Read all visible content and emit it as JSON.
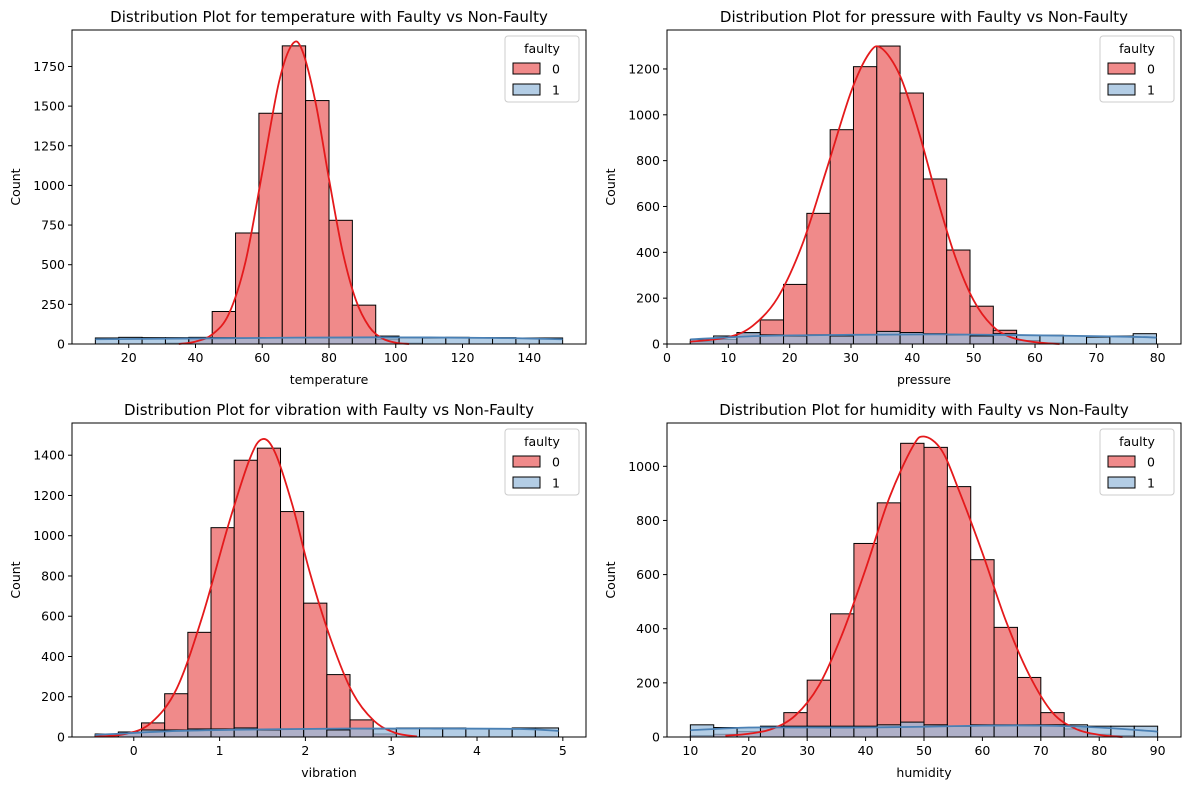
{
  "chart_data": [
    {
      "type": "bar",
      "title": "Distribution Plot for temperature with Faulty vs Non-Faulty",
      "xlabel": "temperature",
      "ylabel": "Count",
      "xlim": [
        3,
        157
      ],
      "ylim": [
        0,
        1980
      ],
      "xticks": [
        20,
        40,
        60,
        80,
        100,
        120,
        140
      ],
      "yticks": [
        0,
        250,
        500,
        750,
        1000,
        1250,
        1500,
        1750
      ],
      "bin_edges": [
        10,
        17,
        24,
        31,
        38,
        45,
        52,
        59,
        66,
        73,
        80,
        87,
        94,
        101,
        108,
        115,
        122,
        129,
        136,
        143,
        150
      ],
      "legend": {
        "title": "faulty",
        "placement": "top-right",
        "entries": [
          "0",
          "1"
        ]
      },
      "colors": {
        "0": "#f08a8a",
        "0_line": "#e41a1c",
        "1": "#99bcdc",
        "1_line": "#4a80b4"
      },
      "series": [
        {
          "name": "0",
          "values": [
            0,
            0,
            0,
            5,
            40,
            205,
            700,
            1455,
            1880,
            1535,
            780,
            245,
            30,
            5,
            0,
            0,
            0,
            0,
            0,
            0
          ],
          "kde": [
            [
              35,
              0
            ],
            [
              40,
              15
            ],
            [
              45,
              60
            ],
            [
              50,
              190
            ],
            [
              55,
              520
            ],
            [
              60,
              1080
            ],
            [
              65,
              1650
            ],
            [
              69,
              1890
            ],
            [
              72,
              1850
            ],
            [
              76,
              1520
            ],
            [
              80,
              1040
            ],
            [
              84,
              590
            ],
            [
              88,
              280
            ],
            [
              92,
              110
            ],
            [
              96,
              35
            ],
            [
              100,
              8
            ],
            [
              104,
              0
            ]
          ]
        },
        {
          "name": "1",
          "values": [
            38,
            42,
            40,
            40,
            42,
            40,
            38,
            40,
            38,
            40,
            40,
            42,
            50,
            40,
            38,
            42,
            40,
            40,
            38,
            38
          ],
          "kde": [
            [
              10,
              30
            ],
            [
              40,
              35
            ],
            [
              70,
              40
            ],
            [
              100,
              42
            ],
            [
              130,
              38
            ],
            [
              150,
              30
            ]
          ]
        }
      ]
    },
    {
      "type": "bar",
      "title": "Distribution Plot for pressure with Faulty vs Non-Faulty",
      "xlabel": "pressure",
      "ylabel": "Count",
      "xlim": [
        0,
        83.8
      ],
      "ylim": [
        0,
        1370
      ],
      "xticks": [
        0,
        10,
        20,
        30,
        40,
        50,
        60,
        70,
        80
      ],
      "yticks": [
        0,
        200,
        400,
        600,
        800,
        1000,
        1200
      ],
      "bin_edges": [
        3.8,
        7.6,
        11.4,
        15.2,
        19.0,
        22.8,
        26.6,
        30.4,
        34.2,
        38.0,
        41.8,
        45.6,
        49.4,
        53.2,
        57.0,
        60.8,
        64.6,
        68.4,
        72.2,
        76.0,
        79.8
      ],
      "legend": {
        "title": "faulty",
        "placement": "top-right",
        "entries": [
          "0",
          "1"
        ]
      },
      "colors": {
        "0": "#f08a8a",
        "0_line": "#e41a1c",
        "1": "#99bcdc",
        "1_line": "#4a80b4"
      },
      "series": [
        {
          "name": "0",
          "values": [
            10,
            20,
            45,
            105,
            260,
            570,
            935,
            1210,
            1300,
            1095,
            720,
            410,
            165,
            60,
            15,
            5,
            0,
            0,
            0,
            0
          ],
          "kde": [
            [
              3.8,
              10
            ],
            [
              10,
              30
            ],
            [
              14,
              80
            ],
            [
              18,
              200
            ],
            [
              22,
              430
            ],
            [
              26,
              760
            ],
            [
              30,
              1100
            ],
            [
              33,
              1270
            ],
            [
              35,
              1290
            ],
            [
              38,
              1170
            ],
            [
              41,
              930
            ],
            [
              44,
              640
            ],
            [
              47,
              380
            ],
            [
              50,
              190
            ],
            [
              53,
              80
            ],
            [
              56,
              30
            ],
            [
              60,
              8
            ],
            [
              64,
              0
            ]
          ]
        },
        {
          "name": "1",
          "values": [
            20,
            35,
            50,
            40,
            35,
            40,
            35,
            40,
            55,
            50,
            45,
            40,
            35,
            45,
            38,
            38,
            35,
            30,
            35,
            45
          ],
          "kde": [
            [
              3.8,
              20
            ],
            [
              15,
              35
            ],
            [
              30,
              40
            ],
            [
              45,
              42
            ],
            [
              60,
              38
            ],
            [
              75,
              32
            ],
            [
              79.8,
              28
            ]
          ]
        }
      ]
    },
    {
      "type": "bar",
      "title": "Distribution Plot for vibration with Faulty vs Non-Faulty",
      "xlabel": "vibration",
      "ylabel": "Count",
      "xlim": [
        -0.72,
        5.27
      ],
      "ylim": [
        0,
        1560
      ],
      "xticks": [
        0,
        1,
        2,
        3,
        4,
        5
      ],
      "yticks": [
        0,
        200,
        400,
        600,
        800,
        1000,
        1200,
        1400
      ],
      "bin_edges": [
        -0.45,
        -0.18,
        0.09,
        0.36,
        0.63,
        0.9,
        1.17,
        1.44,
        1.71,
        1.98,
        2.25,
        2.52,
        2.79,
        3.06,
        3.33,
        3.6,
        3.87,
        4.14,
        4.41,
        4.68,
        4.95
      ],
      "legend": {
        "title": "faulty",
        "placement": "top-right",
        "entries": [
          "0",
          "1"
        ]
      },
      "colors": {
        "0": "#f08a8a",
        "0_line": "#e41a1c",
        "1": "#99bcdc",
        "1_line": "#4a80b4"
      },
      "series": [
        {
          "name": "0",
          "values": [
            5,
            20,
            70,
            215,
            520,
            1040,
            1375,
            1435,
            1120,
            665,
            310,
            85,
            15,
            0,
            0,
            0,
            0,
            0,
            0,
            0
          ],
          "kde": [
            [
              -0.45,
              2
            ],
            [
              -0.1,
              15
            ],
            [
              0.2,
              70
            ],
            [
              0.5,
              240
            ],
            [
              0.8,
              600
            ],
            [
              1.1,
              1050
            ],
            [
              1.35,
              1380
            ],
            [
              1.5,
              1480
            ],
            [
              1.65,
              1410
            ],
            [
              1.85,
              1150
            ],
            [
              2.05,
              820
            ],
            [
              2.3,
              480
            ],
            [
              2.55,
              220
            ],
            [
              2.8,
              80
            ],
            [
              3.05,
              20
            ],
            [
              3.3,
              3
            ]
          ]
        },
        {
          "name": "1",
          "values": [
            15,
            25,
            35,
            35,
            40,
            40,
            45,
            35,
            40,
            40,
            35,
            40,
            40,
            45,
            45,
            45,
            40,
            40,
            45,
            45
          ],
          "kde": [
            [
              -0.45,
              10
            ],
            [
              0.5,
              30
            ],
            [
              1.5,
              38
            ],
            [
              2.5,
              42
            ],
            [
              3.5,
              42
            ],
            [
              4.5,
              40
            ],
            [
              4.95,
              30
            ]
          ]
        }
      ]
    },
    {
      "type": "bar",
      "title": "Distribution Plot for humidity with Faulty vs Non-Faulty",
      "xlabel": "humidity",
      "ylabel": "Count",
      "xlim": [
        6,
        94
      ],
      "ylim": [
        0,
        1160
      ],
      "xticks": [
        10,
        20,
        30,
        40,
        50,
        60,
        70,
        80,
        90
      ],
      "yticks": [
        0,
        200,
        400,
        600,
        800,
        1000
      ],
      "bin_edges": [
        10,
        14,
        18,
        22,
        26,
        30,
        34,
        38,
        42,
        46,
        50,
        54,
        58,
        62,
        66,
        70,
        74,
        78,
        82,
        86,
        90
      ],
      "legend": {
        "title": "faulty",
        "placement": "top-right",
        "entries": [
          "0",
          "1"
        ]
      },
      "colors": {
        "0": "#f08a8a",
        "0_line": "#e41a1c",
        "1": "#99bcdc",
        "1_line": "#4a80b4"
      },
      "series": [
        {
          "name": "0",
          "values": [
            5,
            10,
            20,
            35,
            90,
            210,
            455,
            715,
            865,
            1085,
            1070,
            925,
            655,
            405,
            220,
            90,
            30,
            10,
            5,
            0
          ],
          "kde": [
            [
              16,
              5
            ],
            [
              20,
              12
            ],
            [
              24,
              30
            ],
            [
              28,
              80
            ],
            [
              32,
              190
            ],
            [
              36,
              380
            ],
            [
              40,
              620
            ],
            [
              44,
              880
            ],
            [
              48,
              1070
            ],
            [
              50,
              1110
            ],
            [
              53,
              1060
            ],
            [
              56,
              910
            ],
            [
              60,
              680
            ],
            [
              64,
              430
            ],
            [
              68,
              230
            ],
            [
              72,
              90
            ],
            [
              76,
              30
            ],
            [
              80,
              8
            ],
            [
              84,
              0
            ]
          ]
        },
        {
          "name": "1",
          "values": [
            45,
            35,
            35,
            40,
            40,
            40,
            40,
            40,
            45,
            55,
            45,
            40,
            45,
            45,
            45,
            45,
            45,
            40,
            40,
            40
          ],
          "kde": [
            [
              10,
              25
            ],
            [
              20,
              35
            ],
            [
              30,
              35
            ],
            [
              40,
              35
            ],
            [
              50,
              38
            ],
            [
              60,
              42
            ],
            [
              70,
              42
            ],
            [
              80,
              35
            ],
            [
              90,
              20
            ]
          ]
        }
      ]
    }
  ]
}
